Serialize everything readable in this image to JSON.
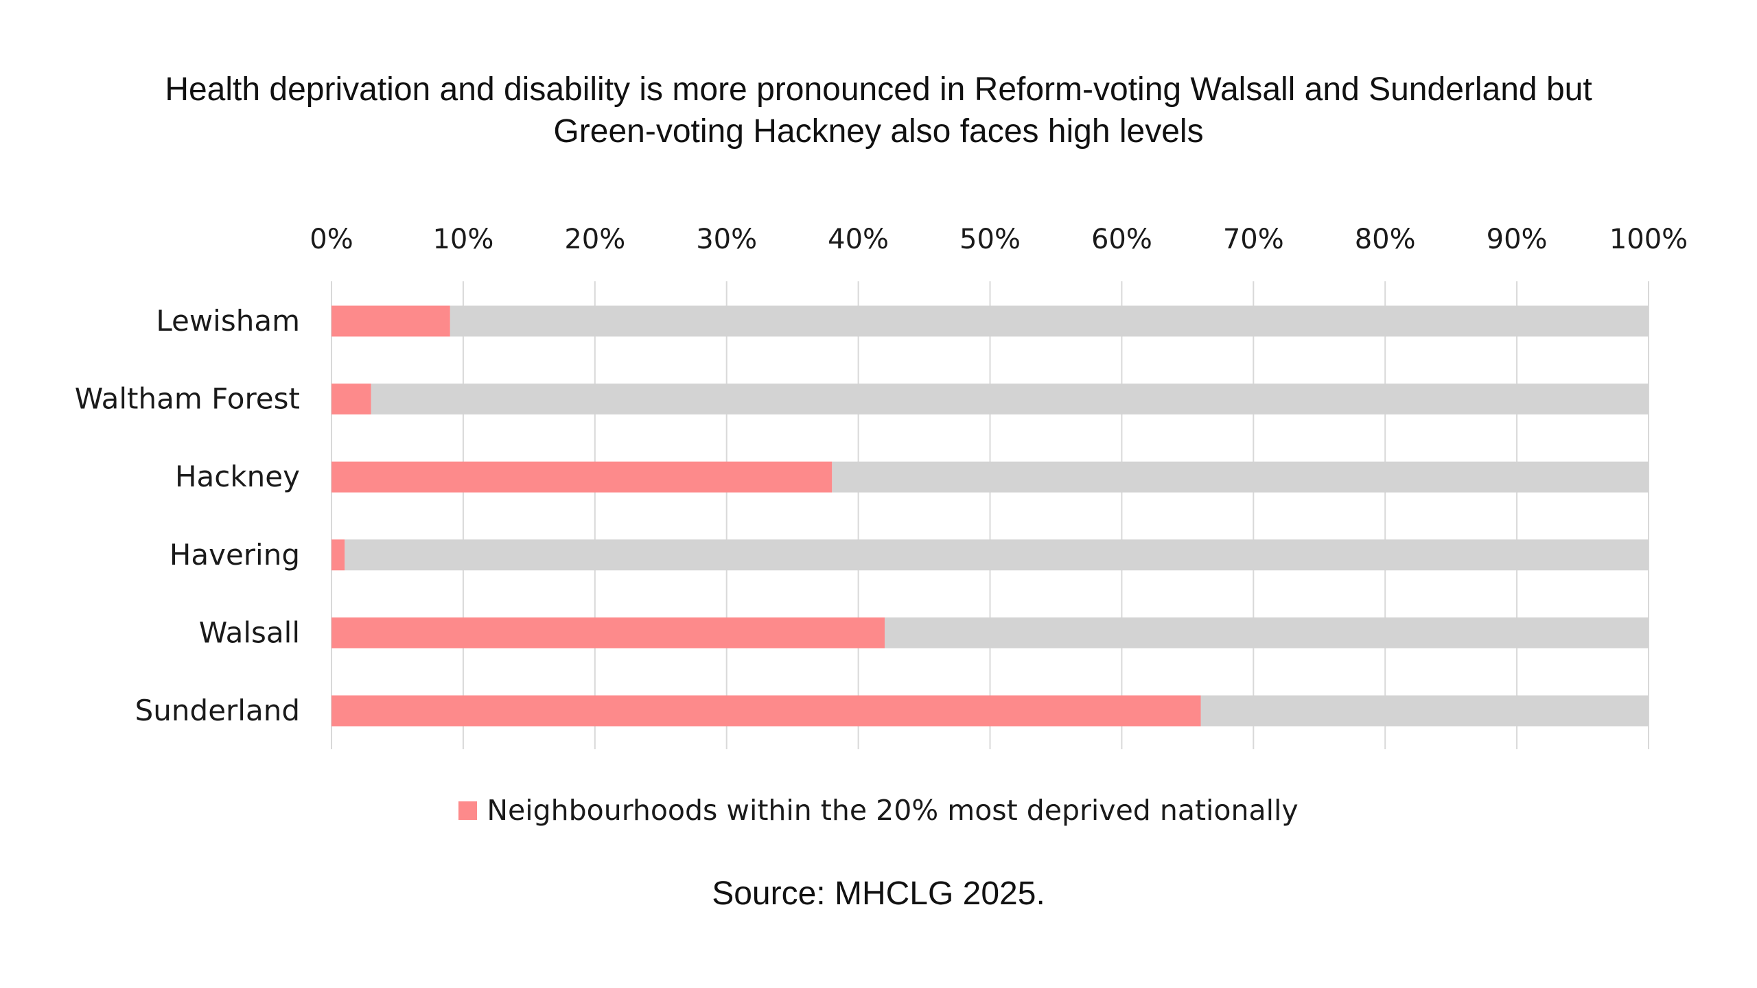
{
  "colors": {
    "primary": "#fd8a8b",
    "remainder": "#d3d3d3",
    "grid": "#d9d9d9"
  },
  "chart_data": {
    "type": "bar",
    "orientation": "horizontal",
    "stacked": "100%",
    "title_lines": [
      "Health deprivation and disability is more pronounced in Reform-voting Walsall and Sunderland but",
      "Green-voting Hackney also faces high levels"
    ],
    "categories": [
      "Lewisham",
      "Waltham Forest",
      "Hackney",
      "Havering",
      "Walsall",
      "Sunderland"
    ],
    "series": [
      {
        "name": "Neighbourhoods within the 20% most deprived nationally",
        "values": [
          9,
          3,
          38,
          1,
          42,
          66
        ]
      }
    ],
    "x_ticks": [
      "0%",
      "10%",
      "20%",
      "30%",
      "40%",
      "50%",
      "60%",
      "70%",
      "80%",
      "90%",
      "100%"
    ],
    "xlim": [
      0,
      100
    ],
    "x_axis_position": "top",
    "grid": true,
    "legend": {
      "position": "bottom",
      "label": "Neighbourhoods within the 20% most deprived nationally"
    },
    "source": "Source: MHCLG 2025."
  }
}
